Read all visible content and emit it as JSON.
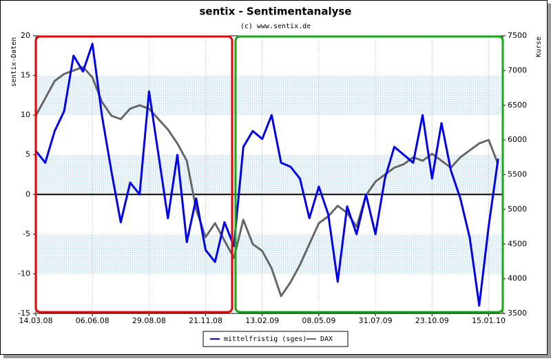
{
  "chart_data": {
    "type": "line",
    "title": "sentix - Sentimentanalyse",
    "subtitle": "(c) www.sentix.de",
    "y_label": "sentix-Daten",
    "y2_label": "Kurse",
    "categories": [
      "14.03.08",
      null,
      null,
      null,
      null,
      null,
      "06.06.08",
      null,
      null,
      null,
      null,
      null,
      "29.08.08",
      null,
      null,
      null,
      null,
      null,
      "21.11.08",
      null,
      null,
      null,
      null,
      null,
      "13.02.09",
      null,
      null,
      null,
      null,
      null,
      "08.05.09",
      null,
      null,
      null,
      null,
      null,
      "31.07.09",
      null,
      null,
      null,
      null,
      null,
      "23.10.09",
      null,
      null,
      null,
      null,
      null,
      "15.01.10",
      null
    ],
    "series": [
      {
        "name": "mittelfristig (sges)",
        "color": "#0000ee",
        "axis": "y",
        "values": [
          5.5,
          4,
          8,
          10.5,
          17.5,
          15.5,
          19,
          10,
          3,
          -3.5,
          1.5,
          0,
          13,
          5,
          -3,
          5,
          -6,
          -0.5,
          -7,
          -8.5,
          -3.5,
          -6.5,
          6,
          8,
          7,
          10,
          4,
          3.5,
          2,
          -3,
          1,
          -2.5,
          -11,
          -1.5,
          -5,
          0,
          -5,
          2,
          6,
          5,
          4,
          10,
          2,
          9,
          3,
          -0.5,
          -5.5,
          -14,
          -4,
          4.5
        ]
      },
      {
        "name": "DAX",
        "color": "#666666",
        "axis": "y2",
        "values": [
          6350,
          6600,
          6850,
          6950,
          7000,
          7050,
          6900,
          6550,
          6350,
          6300,
          6450,
          6500,
          6450,
          6300,
          6150,
          5950,
          5700,
          5000,
          4600,
          4800,
          4550,
          4300,
          4850,
          4500,
          4400,
          4150,
          3750,
          3950,
          4200,
          4500,
          4800,
          4900,
          5050,
          4950,
          4750,
          5200,
          5400,
          5500,
          5600,
          5650,
          5750,
          5700,
          5800,
          5700,
          5600,
          5750,
          5850,
          5950,
          6000,
          5650
        ]
      }
    ],
    "ylim": [
      -15,
      20
    ],
    "yticks": [
      -15,
      -10,
      -5,
      0,
      5,
      10,
      15,
      20
    ],
    "y2lim": [
      3500,
      7500
    ],
    "y2ticks": [
      3500,
      4000,
      4500,
      5000,
      5500,
      6000,
      6500,
      7000,
      7500
    ],
    "grid": true,
    "legend": "bottom"
  }
}
